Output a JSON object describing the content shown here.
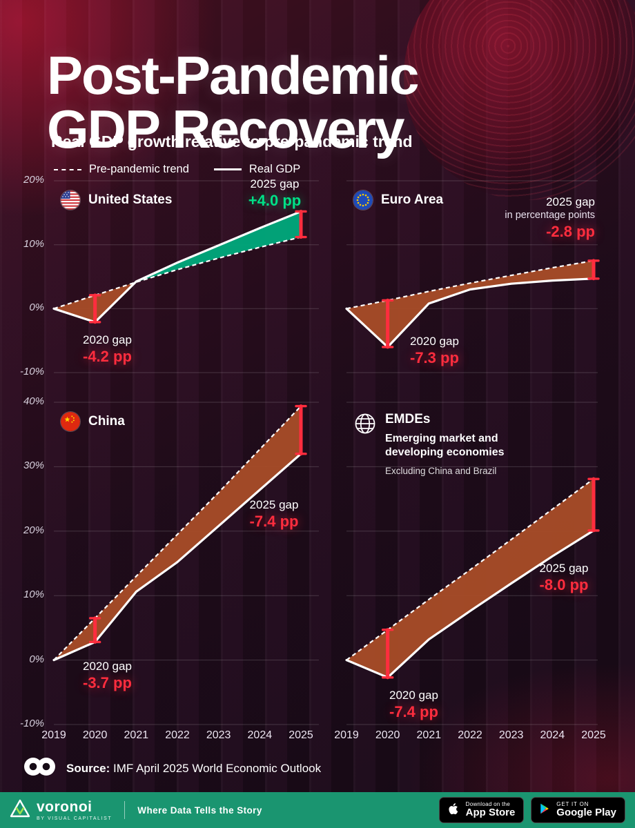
{
  "title": {
    "line1": "Post-Pandemic",
    "line2": "GDP Recovery",
    "subtitle": "Real GDP growth relative to pre-pandemic trend"
  },
  "legend": {
    "trend_label": "Pre-pandemic trend",
    "real_label": "Real GDP"
  },
  "colors": {
    "red": "#ff2d3e",
    "green": "#00e087",
    "fill_negative": "#a74c28",
    "fill_positive": "#00a87b",
    "line": "#ffffff",
    "footer_green": "#1a9570"
  },
  "chart_data": [
    {
      "type": "area",
      "name": "United States",
      "flag": "us-flag",
      "x": [
        2019,
        2020,
        2021,
        2022,
        2023,
        2024,
        2025
      ],
      "ylim": [
        -10,
        20
      ],
      "yticks": [
        20,
        10,
        0,
        -10
      ],
      "ytick_labels": [
        "20%",
        "10%",
        "0%",
        "-10%"
      ],
      "series": [
        {
          "name": "Pre-pandemic trend",
          "values": [
            0,
            2.1,
            4.15,
            6.1,
            7.9,
            9.6,
            11.2
          ]
        },
        {
          "name": "Real GDP",
          "values": [
            0,
            -2.1,
            4.25,
            7.2,
            9.9,
            12.6,
            15.2
          ]
        }
      ],
      "gap_2020": {
        "label": "2020 gap",
        "value": "-4.2 pp"
      },
      "gap_2025": {
        "label": "2025 gap",
        "value": "+4.0 pp"
      }
    },
    {
      "type": "area",
      "name": "Euro Area",
      "flag": "eu-flag",
      "note": "in percentage points",
      "x": [
        2019,
        2020,
        2021,
        2022,
        2023,
        2024,
        2025
      ],
      "ylim": [
        -10,
        20
      ],
      "yticks": [
        20,
        10,
        0,
        -10
      ],
      "series": [
        {
          "name": "Pre-pandemic trend",
          "values": [
            0,
            1.3,
            2.7,
            4.0,
            5.2,
            6.4,
            7.5
          ]
        },
        {
          "name": "Real GDP",
          "values": [
            0,
            -6.0,
            0.8,
            3.0,
            3.9,
            4.4,
            4.7
          ]
        }
      ],
      "gap_2020": {
        "label": "2020 gap",
        "value": "-7.3 pp"
      },
      "gap_2025": {
        "label": "2025 gap",
        "value": "-2.8 pp"
      }
    },
    {
      "type": "area",
      "name": "China",
      "flag": "china-flag",
      "x": [
        2019,
        2020,
        2021,
        2022,
        2023,
        2024,
        2025
      ],
      "ylim": [
        -10,
        40
      ],
      "yticks": [
        40,
        30,
        20,
        10,
        0,
        -10
      ],
      "ytick_labels": [
        "40%",
        "30%",
        "20%",
        "10%",
        "0%",
        "-10%"
      ],
      "series": [
        {
          "name": "Pre-pandemic trend",
          "values": [
            0,
            6.5,
            13.0,
            19.5,
            26.0,
            32.7,
            39.4
          ]
        },
        {
          "name": "Real GDP",
          "values": [
            0,
            2.8,
            10.6,
            15.2,
            20.8,
            26.4,
            32.0
          ]
        }
      ],
      "gap_2020": {
        "label": "2020 gap",
        "value": "-3.7 pp"
      },
      "gap_2025": {
        "label": "2025 gap",
        "value": "-7.4 pp"
      }
    },
    {
      "type": "area",
      "name": "EMDEs",
      "flag": "globe",
      "subtitle": "Emerging market and developing economies",
      "note": "Excluding China and Brazil",
      "x": [
        2019,
        2020,
        2021,
        2022,
        2023,
        2024,
        2025
      ],
      "ylim": [
        -10,
        40
      ],
      "yticks": [
        40,
        30,
        20,
        10,
        0,
        -10
      ],
      "series": [
        {
          "name": "Pre-pandemic trend",
          "values": [
            0,
            4.7,
            9.4,
            14.0,
            18.7,
            23.4,
            28.1
          ]
        },
        {
          "name": "Real GDP",
          "values": [
            0,
            -2.7,
            3.2,
            7.6,
            11.9,
            16.1,
            20.1
          ]
        }
      ],
      "gap_2020": {
        "label": "2020 gap",
        "value": "-7.4 pp"
      },
      "gap_2025": {
        "label": "2025 gap",
        "value": "-8.0 pp"
      }
    }
  ],
  "source": {
    "label": "Source:",
    "text": "IMF April 2025 World Economic Outlook"
  },
  "footer": {
    "brand": "voronoi",
    "brand_sub": "BY VISUAL CAPITALIST",
    "tagline": "Where Data Tells the Story",
    "appstore_line1": "Download on the",
    "appstore_line2": "App Store",
    "gplay_line1": "GET IT ON",
    "gplay_line2": "Google Play"
  }
}
